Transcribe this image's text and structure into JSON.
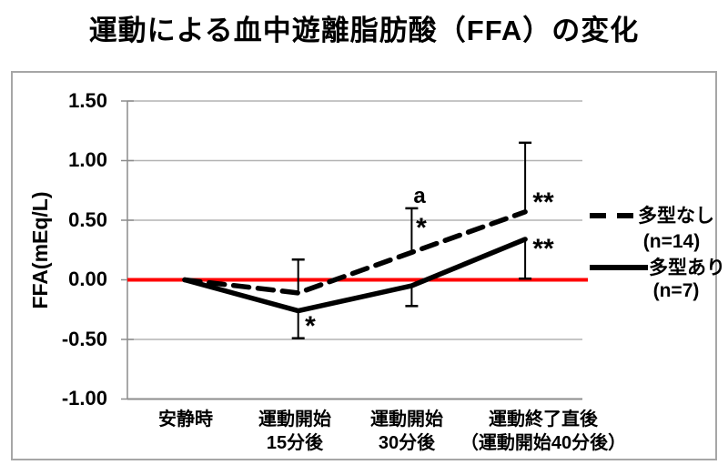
{
  "title": "運動による血中遊離脂肪酸（FFA）の変化",
  "colors": {
    "baseline": "#ff0000",
    "series": "#000000",
    "grid": "#b3b3b3",
    "axis": "#8c8c8c",
    "border": "#a6a6a6",
    "background": "#ffffff"
  },
  "chart_data": {
    "type": "line",
    "title": "運動による血中遊離脂肪酸（FFA）の変化",
    "ylabel": "FFA(mEq/L)",
    "xlabel": "",
    "ylim": [
      -1.0,
      1.5
    ],
    "grid": true,
    "legend_position": "right",
    "categories": [
      "安静時",
      "運動開始15分後",
      "運動開始30分後",
      "運動終了直後（運動開始40分後）"
    ],
    "categories_lines": [
      [
        "安静時"
      ],
      [
        "運動開始",
        "15分後"
      ],
      [
        "運動開始",
        "30分後"
      ],
      [
        "運動終了直後",
        "（運動開始40分後）"
      ]
    ],
    "ytick_labels": [
      "1.50",
      "1.00",
      "0.50",
      "0.00",
      "-0.50",
      "-1.00"
    ],
    "ytick_values": [
      1.5,
      1.0,
      0.5,
      0.0,
      -0.5,
      -1.0
    ],
    "baseline": {
      "value": 0.0,
      "color": "#ff0000"
    },
    "series": [
      {
        "name": "多型なし",
        "n_label": "(n=14)",
        "style": "dashed",
        "color": "#000000",
        "values": [
          0.0,
          -0.11,
          0.23,
          0.57
        ],
        "error_upper_abs": [
          null,
          0.17,
          0.6,
          1.15
        ],
        "error_lower_abs": [
          null,
          null,
          null,
          null
        ]
      },
      {
        "name": "多型あり",
        "n_label": "(n=7)",
        "style": "solid",
        "color": "#000000",
        "values": [
          0.0,
          -0.26,
          -0.05,
          0.34
        ],
        "error_upper_abs": [
          null,
          null,
          null,
          null
        ],
        "error_lower_abs": [
          null,
          -0.49,
          -0.22,
          0.01
        ]
      }
    ],
    "annotations": [
      {
        "text": "*",
        "at": "運動開始15分後",
        "series": "多型あり"
      },
      {
        "text": "a",
        "at": "運動開始30分後",
        "series": "多型なし"
      },
      {
        "text": "*",
        "at": "運動開始30分後",
        "series": "多型なし"
      },
      {
        "text": "**",
        "at": "運動終了直後（運動開始40分後）",
        "series": "多型なし"
      },
      {
        "text": "**",
        "at": "運動終了直後（運動開始40分後）",
        "series": "多型あり"
      }
    ]
  }
}
